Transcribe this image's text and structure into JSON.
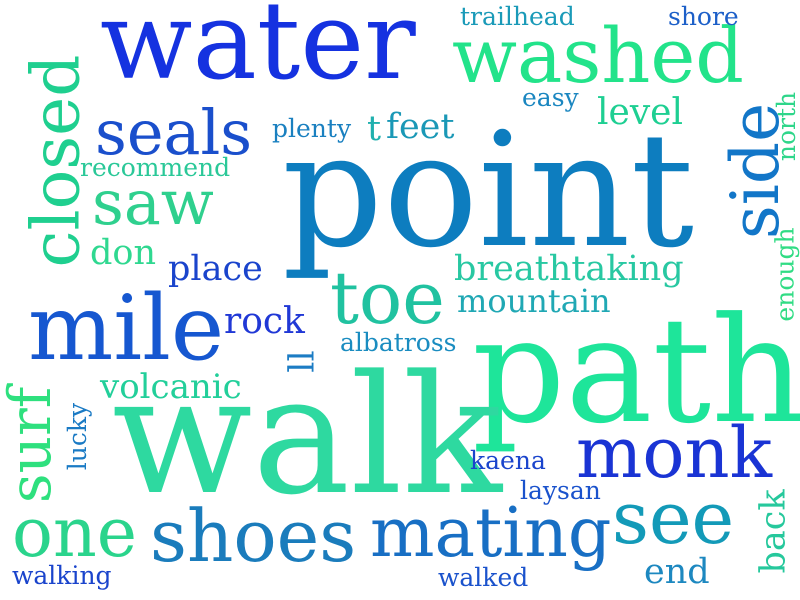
{
  "words": {
    "water": {
      "text": "water",
      "color": "#1532e0"
    },
    "washed": {
      "text": "washed",
      "color": "#22e38a"
    },
    "point": {
      "text": "point",
      "color": "#0d7dbf"
    },
    "path": {
      "text": "path",
      "color": "#1ee59a"
    },
    "walk": {
      "text": "walk",
      "color": "#2ed9a0"
    },
    "closed": {
      "text": "closed",
      "color": "#1fcf8f"
    },
    "mile": {
      "text": "mile",
      "color": "#1657d0"
    },
    "seals": {
      "text": "seals",
      "color": "#1a4fcc"
    },
    "saw": {
      "text": "saw",
      "color": "#2fd08e"
    },
    "side": {
      "text": "side",
      "color": "#1276c8"
    },
    "toe": {
      "text": "toe",
      "color": "#20c2a0"
    },
    "monk": {
      "text": "monk",
      "color": "#1a34d4"
    },
    "shoes": {
      "text": "shoes",
      "color": "#1a7cbc"
    },
    "mating": {
      "text": "mating",
      "color": "#186fc4"
    },
    "see": {
      "text": "see",
      "color": "#139ab8"
    },
    "one": {
      "text": "one",
      "color": "#2ad48c"
    },
    "surf": {
      "text": "surf",
      "color": "#2ee07e"
    },
    "breathtaking": {
      "text": "breathtaking",
      "color": "#28c8a2"
    },
    "mountain": {
      "text": "mountain",
      "color": "#20a8b4"
    },
    "rock": {
      "text": "rock",
      "color": "#2038d6"
    },
    "place": {
      "text": "place",
      "color": "#1a44cc"
    },
    "volcanic": {
      "text": "volcanic",
      "color": "#22cf9a"
    },
    "level": {
      "text": "level",
      "color": "#1ecf92"
    },
    "feet": {
      "text": "feet",
      "color": "#1a98b6"
    },
    "trailhead": {
      "text": "trailhead",
      "color": "#1a9ab8"
    },
    "shore": {
      "text": "shore",
      "color": "#1c5fc8"
    },
    "easy": {
      "text": "easy",
      "color": "#1a86c0"
    },
    "plenty": {
      "text": "plenty",
      "color": "#1a80c0"
    },
    "t": {
      "text": "t",
      "color": "#20b0ae"
    },
    "recommend": {
      "text": "recommend",
      "color": "#2ac898"
    },
    "don": {
      "text": "don",
      "color": "#2fd890"
    },
    "albatross": {
      "text": "albatross",
      "color": "#1a8cc0"
    },
    "ll": {
      "text": "ll",
      "color": "#1c7cc4"
    },
    "kaena": {
      "text": "kaena",
      "color": "#1a44cc"
    },
    "laysan": {
      "text": "laysan",
      "color": "#1a52cc"
    },
    "lucky": {
      "text": "lucky",
      "color": "#1a7ac4"
    },
    "walking": {
      "text": "walking",
      "color": "#1a44cc"
    },
    "walked": {
      "text": "walked",
      "color": "#1a52cc"
    },
    "end": {
      "text": "end",
      "color": "#1d88c0"
    },
    "back": {
      "text": "back",
      "color": "#26c89c"
    },
    "north": {
      "text": "north",
      "color": "#2ed68a"
    },
    "enough": {
      "text": "enough",
      "color": "#30dc84"
    }
  }
}
